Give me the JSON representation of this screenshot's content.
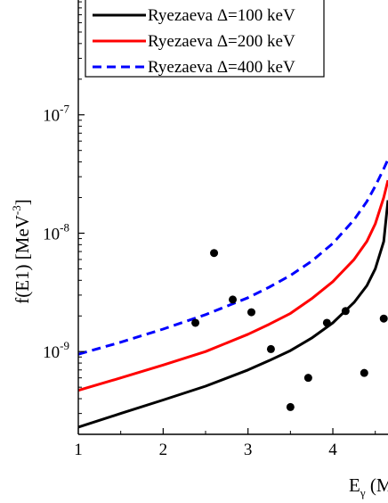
{
  "chart_data": {
    "type": "line",
    "xlabel": "E",
    "xlabel_sub": "γ",
    "xlabel_tail": " (M",
    "ylabel": "f(E1) [MeV",
    "ylabel_sup": "-3",
    "ylabel_tail": "]",
    "xlim": [
      1,
      4.65
    ],
    "ylim": [
      2e-10,
      1e-06
    ],
    "yscale": "log",
    "x_ticks": [
      1,
      2,
      3,
      4
    ],
    "x_tick_labels": [
      "1",
      "2",
      "3",
      "4"
    ],
    "y_ticks": [
      1e-09,
      1e-08,
      1e-07
    ],
    "y_tick_labels": [
      {
        "base": "10",
        "exp": "-9"
      },
      {
        "base": "10",
        "exp": "-8"
      },
      {
        "base": "10",
        "exp": "-7"
      }
    ],
    "legend_position": "top-left",
    "series": [
      {
        "name": "Ryezaeva Δ=100 keV",
        "style": "solid",
        "color": "#000000",
        "x": [
          1.0,
          1.5,
          2.0,
          2.5,
          3.0,
          3.25,
          3.5,
          3.75,
          4.0,
          4.25,
          4.4,
          4.5,
          4.6,
          4.65
        ],
        "y": [
          2.3e-10,
          3e-10,
          3.9e-10,
          5.1e-10,
          7e-10,
          8.4e-10,
          1.02e-09,
          1.3e-09,
          1.75e-09,
          2.6e-09,
          3.6e-09,
          5e-09,
          8.5e-09,
          1.9e-08
        ]
      },
      {
        "name": "Ryezaeva Δ=200 keV",
        "style": "solid",
        "color": "#ff0000",
        "x": [
          1.0,
          1.5,
          2.0,
          2.5,
          3.0,
          3.25,
          3.5,
          3.75,
          4.0,
          4.25,
          4.4,
          4.5,
          4.6,
          4.65
        ],
        "y": [
          4.7e-10,
          6e-10,
          7.7e-10,
          1e-09,
          1.4e-09,
          1.7e-09,
          2.1e-09,
          2.8e-09,
          3.9e-09,
          6e-09,
          8.5e-09,
          1.2e-08,
          2e-08,
          2.8e-08
        ]
      },
      {
        "name": "Ryezaeva Δ=400 keV",
        "style": "dashed",
        "color": "#0000ff",
        "x": [
          1.0,
          1.5,
          2.0,
          2.5,
          3.0,
          3.25,
          3.5,
          3.75,
          4.0,
          4.25,
          4.4,
          4.5,
          4.6,
          4.65
        ],
        "y": [
          9.5e-10,
          1.2e-09,
          1.55e-09,
          2.05e-09,
          2.85e-09,
          3.5e-09,
          4.4e-09,
          5.8e-09,
          8.2e-09,
          1.3e-08,
          1.85e-08,
          2.5e-08,
          3.5e-08,
          4.2e-08
        ]
      }
    ],
    "points": {
      "color": "#000000",
      "x": [
        2.38,
        2.6,
        2.82,
        3.04,
        3.27,
        3.5,
        3.71,
        3.93,
        4.15,
        4.37,
        4.6
      ],
      "y": [
        1.75e-09,
        6.8e-09,
        2.75e-09,
        2.15e-09,
        1.05e-09,
        3.4e-10,
        6e-10,
        1.75e-09,
        2.2e-09,
        6.6e-10,
        1.9e-09
      ]
    }
  }
}
